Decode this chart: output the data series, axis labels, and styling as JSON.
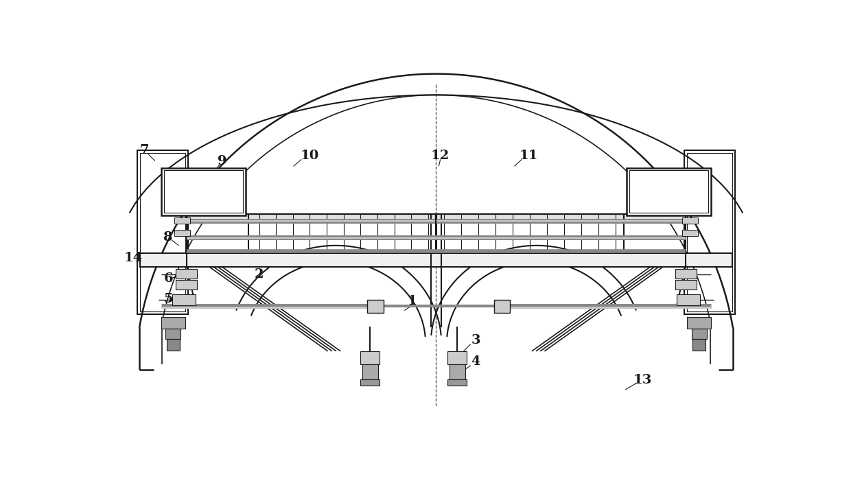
{
  "bg_color": "#ffffff",
  "lc": "#1a1a1a",
  "gc": "#888888",
  "lgc": "#cccccc",
  "fig_width": 12.4,
  "fig_height": 7.04
}
